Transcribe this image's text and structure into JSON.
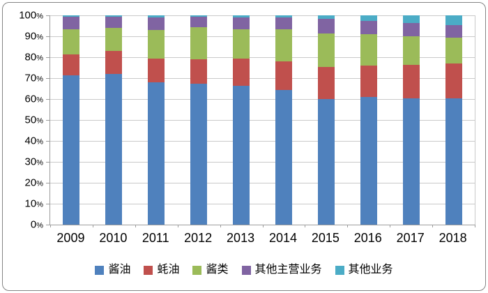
{
  "chart_data": {
    "type": "bar",
    "stacked": true,
    "percent_stacked": true,
    "title": "",
    "xlabel": "",
    "ylabel": "",
    "ylim": [
      0,
      100
    ],
    "grid": true,
    "legend_position": "bottom",
    "categories": [
      "2009",
      "2010",
      "2011",
      "2012",
      "2013",
      "2014",
      "2015",
      "2016",
      "2017",
      "2018"
    ],
    "y_ticks": [
      "0%",
      "10%",
      "20%",
      "30%",
      "40%",
      "50%",
      "60%",
      "70%",
      "80%",
      "90%",
      "100%"
    ],
    "series": [
      {
        "name": "酱油",
        "color": "#4F81BD",
        "values": [
          71.5,
          72.0,
          68.0,
          67.5,
          66.5,
          64.5,
          60.0,
          61.0,
          60.5,
          60.5
        ]
      },
      {
        "name": "蚝油",
        "color": "#C0504D",
        "values": [
          10.0,
          11.0,
          11.5,
          11.5,
          13.0,
          13.5,
          15.5,
          15.0,
          16.0,
          16.5
        ]
      },
      {
        "name": "酱类",
        "color": "#9BBB59",
        "values": [
          12.0,
          11.0,
          13.5,
          15.5,
          14.0,
          15.5,
          16.0,
          15.0,
          13.5,
          12.5
        ]
      },
      {
        "name": "其他主营业务",
        "color": "#8064A2",
        "values": [
          6.0,
          5.5,
          6.0,
          5.0,
          5.5,
          5.5,
          7.0,
          6.5,
          6.5,
          6.0
        ]
      },
      {
        "name": "其他业务",
        "color": "#4BACC6",
        "values": [
          0.5,
          0.5,
          1.0,
          0.5,
          1.0,
          1.0,
          1.5,
          2.5,
          3.5,
          4.5
        ]
      }
    ]
  }
}
